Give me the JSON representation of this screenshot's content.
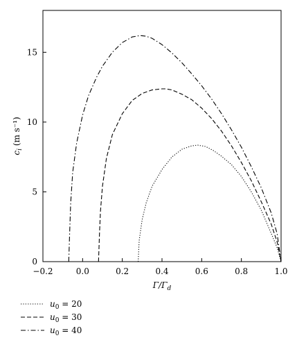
{
  "chart_data": {
    "type": "line",
    "title": "",
    "xlabel": "Γ/Γ_d",
    "ylabel": "c_i (m s⁻¹)",
    "xlim": [
      -0.2,
      1.0
    ],
    "ylim": [
      0,
      18
    ],
    "xticks": [
      -0.2,
      0.0,
      0.2,
      0.4,
      0.6,
      0.8,
      1.0
    ],
    "xtick_labels": [
      "−0.2",
      "0.0",
      "0.2",
      "0.4",
      "0.6",
      "0.8",
      "1.0"
    ],
    "yticks": [
      0,
      5,
      10,
      15
    ],
    "ytick_labels": [
      "0",
      "5",
      "10",
      "15"
    ],
    "grid": false,
    "legend_position": "below",
    "series": [
      {
        "name": "u0 = 20",
        "label_var": "u",
        "label_sub": "0",
        "label_rest": " = 20",
        "dash": "dotted",
        "x": [
          0.28,
          0.285,
          0.3,
          0.32,
          0.35,
          0.4,
          0.45,
          0.5,
          0.55,
          0.58,
          0.62,
          0.66,
          0.7,
          0.75,
          0.8,
          0.85,
          0.9,
          0.93,
          0.96,
          0.98,
          1.0
        ],
        "y": [
          0,
          1.5,
          3.0,
          4.2,
          5.4,
          6.6,
          7.5,
          8.05,
          8.3,
          8.35,
          8.25,
          7.95,
          7.55,
          6.95,
          6.1,
          5.0,
          3.7,
          2.7,
          1.7,
          1.0,
          0
        ]
      },
      {
        "name": "u0 = 30",
        "label_var": "u",
        "label_sub": "0",
        "label_rest": " = 30",
        "dash": "dashed",
        "x": [
          0.08,
          0.085,
          0.09,
          0.1,
          0.12,
          0.15,
          0.2,
          0.25,
          0.3,
          0.35,
          0.4,
          0.42,
          0.45,
          0.5,
          0.55,
          0.6,
          0.65,
          0.7,
          0.75,
          0.8,
          0.85,
          0.9,
          0.95,
          0.98,
          1.0
        ],
        "y": [
          0,
          2.0,
          3.6,
          5.4,
          7.4,
          9.1,
          10.6,
          11.55,
          12.05,
          12.3,
          12.38,
          12.38,
          12.3,
          12.0,
          11.6,
          11.0,
          10.25,
          9.35,
          8.3,
          7.1,
          5.8,
          4.3,
          2.7,
          1.4,
          0
        ]
      },
      {
        "name": "u0 = 40",
        "label_var": "u",
        "label_sub": "0",
        "label_rest": " = 40",
        "dash": "dashdot",
        "x": [
          -0.07,
          -0.065,
          -0.06,
          -0.05,
          -0.03,
          0.0,
          0.03,
          0.07,
          0.1,
          0.15,
          0.2,
          0.25,
          0.29,
          0.32,
          0.35,
          0.4,
          0.45,
          0.5,
          0.55,
          0.6,
          0.65,
          0.7,
          0.75,
          0.8,
          0.85,
          0.9,
          0.95,
          0.98,
          1.0
        ],
        "y": [
          0,
          2.2,
          4.2,
          6.4,
          8.5,
          10.5,
          11.9,
          13.2,
          14.0,
          15.0,
          15.7,
          16.1,
          16.2,
          16.15,
          16.0,
          15.55,
          14.95,
          14.25,
          13.45,
          12.6,
          11.65,
          10.6,
          9.45,
          8.2,
          6.8,
          5.3,
          3.5,
          2.0,
          0
        ]
      }
    ]
  }
}
